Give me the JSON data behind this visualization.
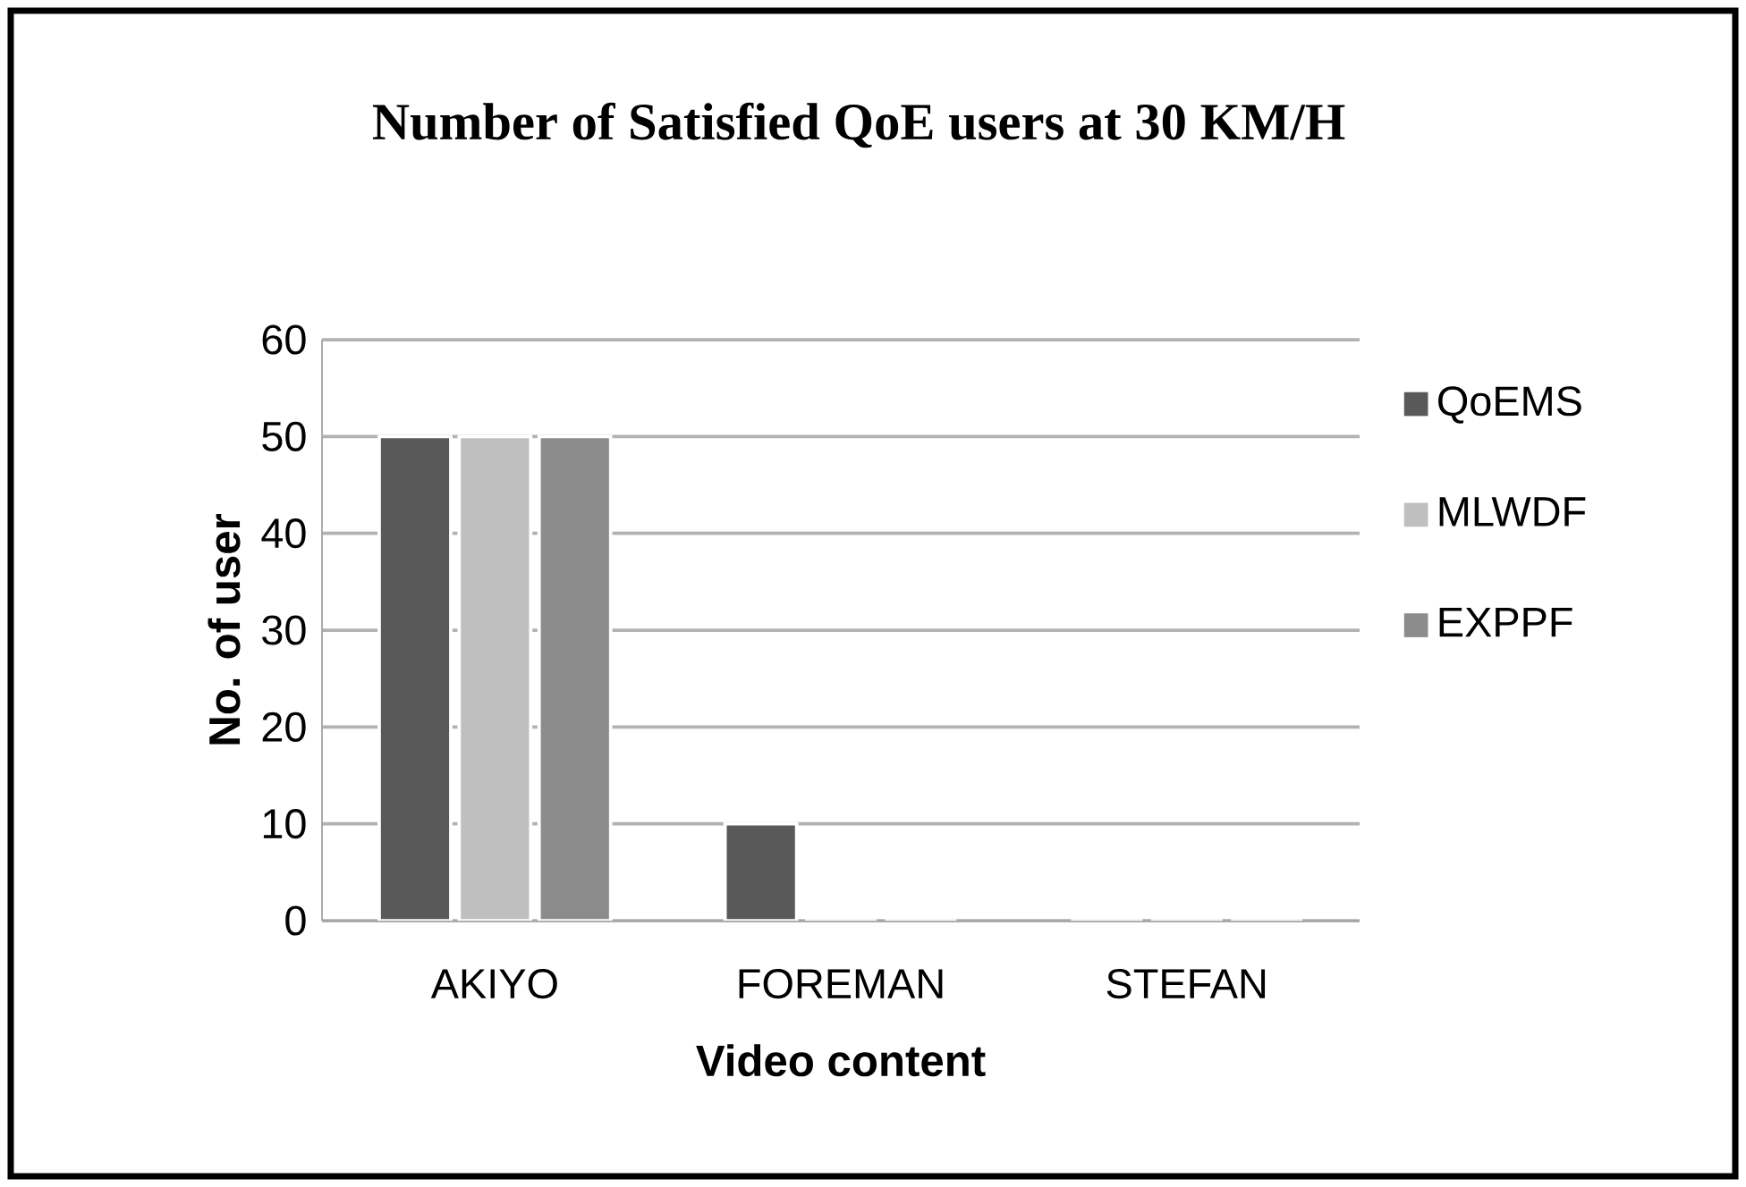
{
  "chart_data": {
    "type": "bar",
    "title": "Number of Satisfied QoE users at 30 KM/H",
    "xlabel": "Video content",
    "ylabel": "No. of user",
    "categories": [
      "AKIYO",
      "FOREMAN",
      "STEFAN"
    ],
    "series": [
      {
        "name": "QoEMS",
        "color": "#595959",
        "values": [
          50,
          10,
          0
        ]
      },
      {
        "name": "MLWDF",
        "color": "#bfbfbf",
        "values": [
          50,
          0,
          0
        ]
      },
      {
        "name": "EXPPF",
        "color": "#8c8c8c",
        "values": [
          50,
          0,
          0
        ]
      }
    ],
    "ylim": [
      0,
      60
    ],
    "yticks": [
      0,
      10,
      20,
      30,
      40,
      50,
      60
    ],
    "grid": "y",
    "legend": "right"
  }
}
